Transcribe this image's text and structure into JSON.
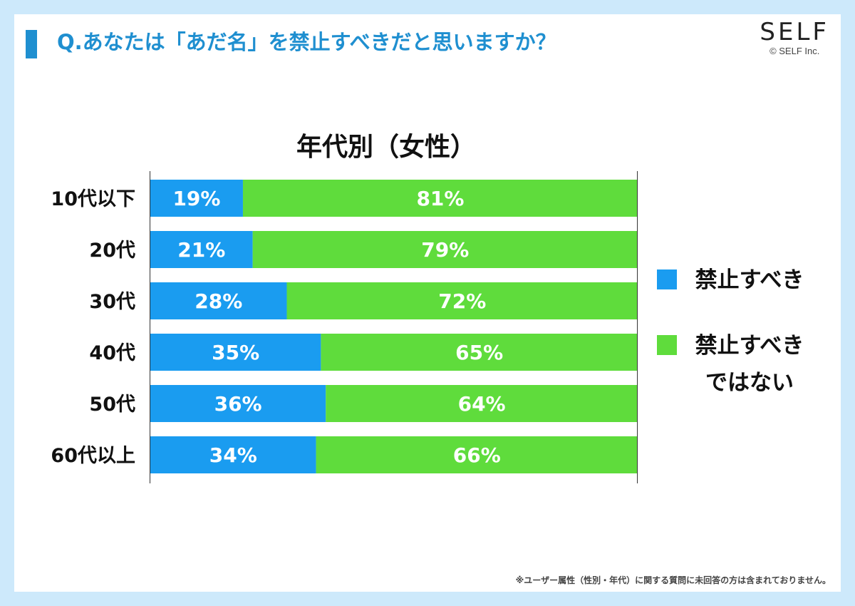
{
  "header": {
    "question": "Q.あなたは「あだ名」を禁止すべきだと思いますか？"
  },
  "logo": {
    "word": "SELF",
    "copyright": "© SELF Inc."
  },
  "footnote": "※ユーザー属性（性別・年代）に関する質問に未回答の方は含まれておりません。",
  "colors": {
    "should_ban": "#1a9cf0",
    "should_not_ban": "#5fdc3c",
    "accent": "#1f8fd0"
  },
  "chart_data": {
    "type": "bar",
    "orientation": "horizontal",
    "stacked": true,
    "title": "年代別（女性）",
    "categories": [
      "10代以下",
      "20代",
      "30代",
      "40代",
      "50代",
      "60代以上"
    ],
    "series": [
      {
        "name": "禁止すべき",
        "values": [
          19,
          21,
          28,
          35,
          36,
          34
        ],
        "labels": [
          "19%",
          "21%",
          "28%",
          "35%",
          "36%",
          "34%"
        ]
      },
      {
        "name": "禁止すべきではない",
        "values": [
          81,
          79,
          72,
          65,
          64,
          66
        ],
        "labels": [
          "81%",
          "79%",
          "72%",
          "65%",
          "64%",
          "66%"
        ]
      }
    ],
    "legend": {
      "items": [
        {
          "lines": [
            "禁止すべき"
          ]
        },
        {
          "lines": [
            "禁止すべき",
            "ではない"
          ]
        }
      ],
      "position": "right"
    },
    "xlim": [
      0,
      100
    ],
    "grid": false
  }
}
